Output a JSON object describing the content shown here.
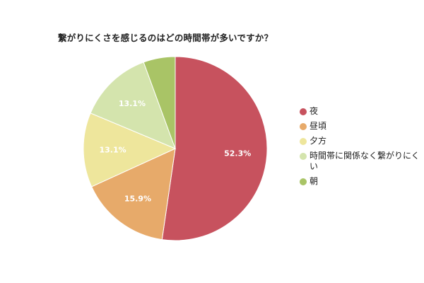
{
  "chart_data": {
    "type": "pie",
    "title": "繋がりにくさを感じるのはどの時間帯が多いですか？",
    "categories": [
      "夜",
      "昼頃",
      "夕方",
      "時間帯に関係なく繋がりにくい",
      "朝"
    ],
    "values": [
      52.3,
      15.9,
      13.1,
      13.1,
      5.6
    ],
    "data_labels": [
      "52.3%",
      "15.9%",
      "13.1%",
      "13.1%",
      ""
    ],
    "colors": [
      "#c7525e",
      "#e7aa6a",
      "#eee69c",
      "#d4e4ad",
      "#a9c466"
    ],
    "legend_position": "right",
    "start_angle": "top",
    "direction": "clockwise"
  }
}
